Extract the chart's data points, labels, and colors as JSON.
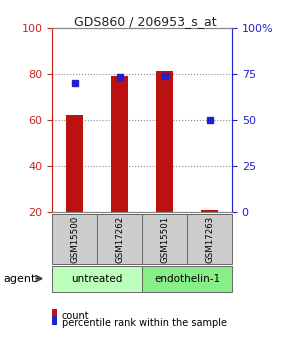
{
  "title": "GDS860 / 206953_s_at",
  "samples": [
    "GSM15500",
    "GSM17262",
    "GSM15501",
    "GSM17263"
  ],
  "counts": [
    62,
    79,
    81,
    21
  ],
  "percentiles": [
    70,
    73,
    74,
    50
  ],
  "bar_color": "#bb1111",
  "marker_color": "#2222cc",
  "ylim_left": [
    20,
    100
  ],
  "ylim_right": [
    0,
    100
  ],
  "yticks_left": [
    20,
    40,
    60,
    80,
    100
  ],
  "yticks_right": [
    0,
    25,
    50,
    75,
    100
  ],
  "yticklabels_right": [
    "0",
    "25",
    "50",
    "75",
    "100%"
  ],
  "groups": [
    {
      "label": "untreated",
      "color": "#bbffbb"
    },
    {
      "label": "endothelin-1",
      "color": "#88ee88"
    }
  ],
  "agent_label": "agent",
  "legend_count_label": "count",
  "legend_percentile_label": "percentile rank within the sample",
  "title_color": "#222222",
  "left_axis_color": "#cc2222",
  "right_axis_color": "#2222cc",
  "grid_color": "#888888",
  "sample_box_color": "#cccccc",
  "fig_width": 2.9,
  "fig_height": 3.45,
  "dpi": 100
}
